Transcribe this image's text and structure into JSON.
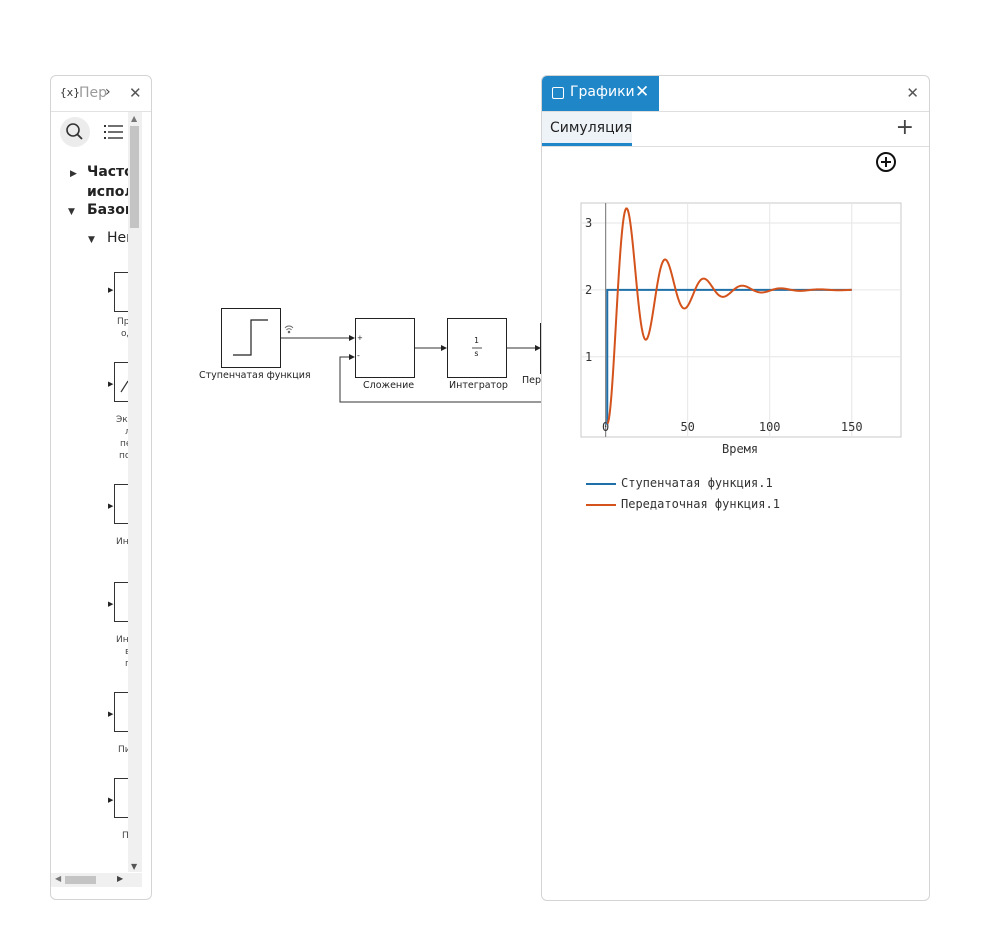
{
  "library_panel": {
    "tab_icon": "{x}",
    "tab_title": "Пер",
    "icons": [
      "braces-icon",
      "chevron-right-icon",
      "close-icon",
      "search-icon",
      "list-icon"
    ],
    "tree": [
      {
        "label": "Часто",
        "label2": "испол",
        "expanded": false
      },
      {
        "label": "Базов",
        "expanded": true
      },
      {
        "label": "Неп",
        "expanded": true
      }
    ],
    "blocks": [
      {
        "label_lines": [
          "Пр",
          "од"
        ]
      },
      {
        "label_lines": [
          "Эк",
          "л",
          "пе",
          "по"
        ]
      },
      {
        "label_lines": [
          "Ин"
        ]
      },
      {
        "label_lines": [
          "Ин",
          "в",
          "г"
        ]
      },
      {
        "label_lines": [
          "Пи"
        ]
      },
      {
        "label_lines": [
          "П"
        ]
      }
    ]
  },
  "diagram": {
    "blocks": {
      "step": "Ступенчатая функция",
      "sum": "Сложение",
      "integrator": "Интегратор",
      "transfer": "Перед"
    },
    "integrator_num": "1",
    "integrator_den": "s",
    "sum_signs": [
      "+",
      "-"
    ]
  },
  "plots_panel": {
    "tab_title": "Графики",
    "subtab": "Симуляция",
    "icons": [
      "chart-icon",
      "close-icon",
      "add-tab-icon",
      "add-plot-icon"
    ],
    "legend": [
      {
        "name": "Ступенчатая функция.1",
        "color": "#1f6fa8"
      },
      {
        "name": "Передаточная функция.1",
        "color": "#d4531c"
      }
    ]
  },
  "chart_data": {
    "type": "line",
    "xlabel": "Время",
    "ylabel": "",
    "xlim": [
      -15,
      180
    ],
    "ylim": [
      -0.2,
      3.3
    ],
    "xticks": [
      0,
      50,
      100,
      150
    ],
    "yticks": [
      1,
      2,
      3
    ],
    "grid": true,
    "legend_position": "bottom",
    "series": [
      {
        "name": "Ступенчатая функция.1",
        "color": "#1f6fa8",
        "x": [
          0,
          1,
          1,
          150
        ],
        "y": [
          0,
          0,
          2,
          2
        ]
      },
      {
        "name": "Передаточная функция.1",
        "color": "#d4531c",
        "model": {
          "steady_state": 2,
          "overshoot": 0.63,
          "decay": 0.042,
          "period": 23.5,
          "start": 1,
          "end": 150
        }
      }
    ]
  }
}
